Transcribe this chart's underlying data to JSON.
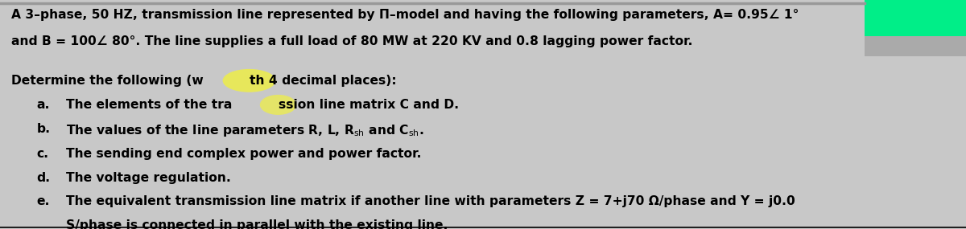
{
  "bg_color": "#c8c8c8",
  "text_color": "#000000",
  "line1": "A 3–phase, 50 HZ, transmission line represented by Π–model and having the following parameters, A= 0.95∠ 1°",
  "line2": "and B = 100∠ 80°. The line supplies a full load of 80 MW at 220 KV and 0.8 lagging power factor.",
  "line3a": "Determine the following (w",
  "line3b": "th 4 decimal places):",
  "item_a_pre": "The elements of the tra",
  "item_a_post": "ssion line matrix C and D.",
  "item_b": "The values of the line parameters R, L, R$_{\\sf sh}$ and C$_{\\sf sh}$.",
  "item_c": "The sending end complex power and power factor.",
  "item_d": "The voltage regulation.",
  "item_e1": "The equivalent transmission line matrix if another line with parameters Z = 7+j70 Ω/phase and Y = j0.0",
  "item_e2": "S/phase is connected in parallel with the existing line.",
  "font_size": 11.2,
  "corner_color": "#00ee88"
}
